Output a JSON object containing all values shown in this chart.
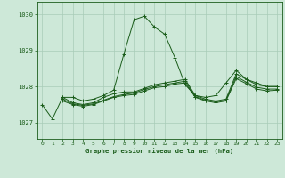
{
  "title": "Graphe pression niveau de la mer (hPa)",
  "bg_color": "#cde8d8",
  "grid_color": "#a8ccb8",
  "line_color": "#1a5c1a",
  "marker_color": "#1a5c1a",
  "xlim": [
    -0.5,
    23.5
  ],
  "ylim": [
    1026.55,
    1030.35
  ],
  "yticks": [
    1027,
    1028,
    1029,
    1030
  ],
  "xticks": [
    0,
    1,
    2,
    3,
    4,
    5,
    6,
    7,
    8,
    9,
    10,
    11,
    12,
    13,
    14,
    15,
    16,
    17,
    18,
    19,
    20,
    21,
    22,
    23
  ],
  "lines": [
    {
      "x": [
        0,
        1,
        2,
        3,
        4,
        5,
        6,
        7,
        8,
        9,
        10,
        11,
        12,
        13,
        14,
        15,
        16,
        17,
        18,
        19,
        20,
        21,
        22,
        23
      ],
      "y": [
        1027.5,
        1027.1,
        1027.7,
        1027.7,
        1027.6,
        1027.65,
        1027.75,
        1027.9,
        1028.9,
        1029.85,
        1029.95,
        1029.65,
        1029.45,
        1028.8,
        1028.05,
        1027.75,
        1027.7,
        1027.75,
        1028.1,
        1028.45,
        1028.2,
        1028.1,
        1028.0,
        1028.0
      ]
    },
    {
      "x": [
        2,
        3,
        4,
        5,
        6,
        7,
        8,
        9,
        10,
        11,
        12,
        13,
        14,
        15,
        16,
        17,
        18,
        19,
        20,
        21,
        22,
        23
      ],
      "y": [
        1027.7,
        1027.55,
        1027.5,
        1027.55,
        1027.7,
        1027.8,
        1027.85,
        1027.85,
        1027.95,
        1028.05,
        1028.1,
        1028.15,
        1028.2,
        1027.75,
        1027.65,
        1027.6,
        1027.65,
        1028.35,
        1028.2,
        1028.05,
        1028.0,
        1028.0
      ]
    },
    {
      "x": [
        2,
        3,
        4,
        5,
        6,
        7,
        8,
        9,
        10,
        11,
        12,
        13,
        14,
        15,
        16,
        17,
        18,
        19,
        20,
        21,
        22,
        23
      ],
      "y": [
        1027.65,
        1027.52,
        1027.48,
        1027.52,
        1027.62,
        1027.72,
        1027.78,
        1027.82,
        1027.92,
        1028.0,
        1028.05,
        1028.1,
        1028.15,
        1027.72,
        1027.62,
        1027.58,
        1027.62,
        1028.28,
        1028.12,
        1027.98,
        1027.93,
        1027.93
      ]
    },
    {
      "x": [
        2,
        3,
        4,
        5,
        6,
        7,
        8,
        9,
        10,
        11,
        12,
        13,
        14,
        15,
        16,
        17,
        18,
        19,
        20,
        21,
        22,
        23
      ],
      "y": [
        1027.6,
        1027.5,
        1027.45,
        1027.5,
        1027.6,
        1027.7,
        1027.75,
        1027.78,
        1027.88,
        1027.97,
        1028.0,
        1028.07,
        1028.1,
        1027.7,
        1027.6,
        1027.55,
        1027.6,
        1028.22,
        1028.08,
        1027.93,
        1027.88,
        1027.9
      ]
    }
  ]
}
